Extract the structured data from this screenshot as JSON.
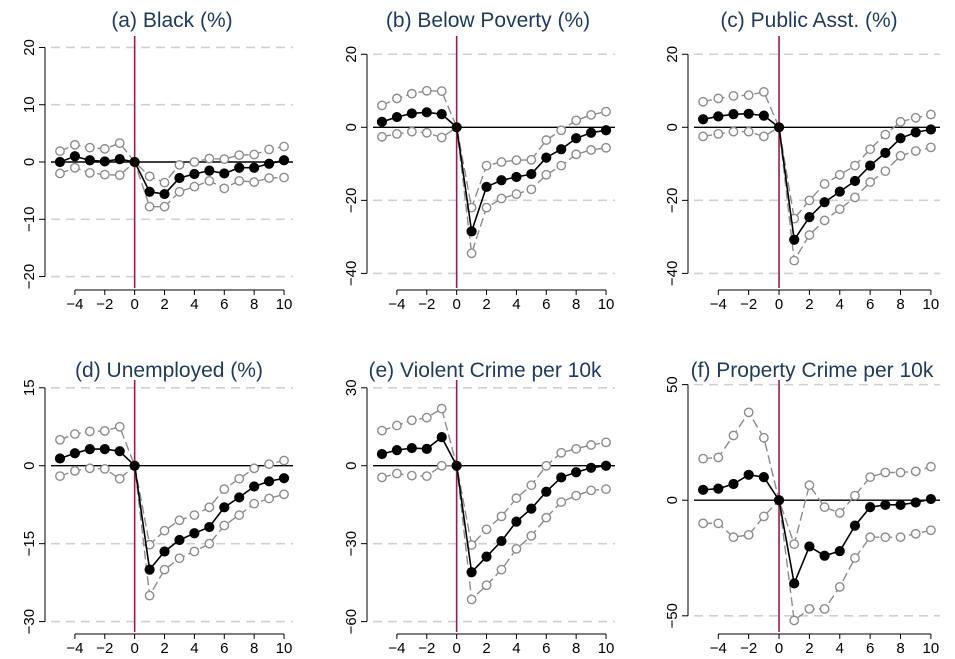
{
  "figure": {
    "x_ticks": [
      "−4",
      "−2",
      "0",
      "2",
      "4",
      "6",
      "8",
      "10"
    ],
    "colors": {
      "point": "#000000",
      "ci": "#8c8c8c",
      "event_line": "#a01850",
      "grid": "#d0d0d0"
    }
  },
  "chart_data": [
    {
      "type": "line",
      "title": "(a) Black (%)",
      "x": [
        -5,
        -4,
        -3,
        -2,
        -1,
        0,
        1,
        2,
        3,
        4,
        5,
        6,
        7,
        8,
        9,
        10
      ],
      "ylim": [
        -22,
        22
      ],
      "yticks": [
        -20,
        -10,
        0,
        10,
        20
      ],
      "ytick_labels": [
        "−20",
        "−10",
        "0",
        "10",
        "20"
      ],
      "series": [
        {
          "values": [
            0.0,
            1.0,
            0.3,
            0.1,
            0.5,
            0.0,
            -5.2,
            -5.6,
            -2.8,
            -2.1,
            -1.5,
            -2.0,
            -1.0,
            -1.0,
            -0.3,
            0.3
          ]
        },
        {
          "values": [
            1.9,
            3.0,
            2.5,
            2.3,
            3.3,
            0.0,
            -2.5,
            -3.6,
            -0.5,
            0.0,
            0.6,
            0.5,
            1.2,
            1.3,
            2.2,
            2.7
          ]
        },
        {
          "values": [
            -2.0,
            -1.0,
            -1.9,
            -2.2,
            -2.3,
            0.0,
            -7.8,
            -7.8,
            -5.2,
            -4.3,
            -3.3,
            -4.6,
            -3.3,
            -3.5,
            -2.8,
            -2.7
          ]
        }
      ]
    },
    {
      "type": "line",
      "title": "(b) Below Poverty (%)",
      "x": [
        -5,
        -4,
        -3,
        -2,
        -1,
        0,
        1,
        2,
        3,
        4,
        5,
        6,
        7,
        8,
        9,
        10
      ],
      "ylim": [
        -44,
        25
      ],
      "yticks": [
        -40,
        -20,
        0,
        20
      ],
      "ytick_labels": [
        "−40",
        "−20",
        "0",
        "20"
      ],
      "series": [
        {
          "values": [
            1.5,
            2.8,
            3.8,
            4.1,
            3.6,
            0.0,
            -28.5,
            -16.3,
            -14.5,
            -13.6,
            -12.8,
            -8.3,
            -6.0,
            -3.0,
            -1.5,
            -0.8
          ]
        },
        {
          "values": [
            6.0,
            7.9,
            9.2,
            10.0,
            9.9,
            0.0,
            -22.0,
            -10.5,
            -9.5,
            -9.0,
            -8.9,
            -3.5,
            -0.8,
            1.9,
            3.4,
            4.3
          ]
        },
        {
          "values": [
            -2.6,
            -1.8,
            -1.2,
            -1.5,
            -2.8,
            0.0,
            -34.5,
            -22.0,
            -19.5,
            -18.3,
            -17.0,
            -13.0,
            -10.5,
            -7.4,
            -6.2,
            -5.6
          ]
        }
      ]
    },
    {
      "type": "line",
      "title": "(c) Public Asst. (%)",
      "x": [
        -5,
        -4,
        -3,
        -2,
        -1,
        0,
        1,
        2,
        3,
        4,
        5,
        6,
        7,
        8,
        9,
        10
      ],
      "ylim": [
        -44,
        25
      ],
      "yticks": [
        -40,
        -20,
        0,
        20
      ],
      "ytick_labels": [
        "−40",
        "−20",
        "0",
        "20"
      ],
      "series": [
        {
          "values": [
            2.2,
            3.0,
            3.6,
            3.7,
            3.2,
            0.0,
            -30.8,
            -24.6,
            -20.5,
            -17.6,
            -14.7,
            -10.5,
            -7.0,
            -3.0,
            -1.4,
            -0.6
          ]
        },
        {
          "values": [
            7.0,
            7.9,
            8.6,
            8.8,
            9.7,
            0.0,
            -25.0,
            -20.0,
            -15.5,
            -13.0,
            -10.5,
            -6.0,
            -2.0,
            1.5,
            2.6,
            3.5
          ]
        },
        {
          "values": [
            -2.5,
            -1.8,
            -1.2,
            -1.2,
            -2.5,
            0.0,
            -36.5,
            -29.5,
            -25.5,
            -22.4,
            -19.2,
            -15.0,
            -12.0,
            -7.8,
            -6.5,
            -5.5
          ]
        }
      ]
    },
    {
      "type": "line",
      "title": "(d) Unemployed (%)",
      "x": [
        -5,
        -4,
        -3,
        -2,
        -1,
        0,
        1,
        2,
        3,
        4,
        5,
        6,
        7,
        8,
        9,
        10
      ],
      "ylim": [
        -32,
        16.5
      ],
      "yticks": [
        -30,
        -15,
        0,
        15
      ],
      "ytick_labels": [
        "−30",
        "−15",
        "0",
        "15"
      ],
      "series": [
        {
          "values": [
            1.4,
            2.4,
            3.2,
            3.2,
            2.8,
            0.0,
            -20.0,
            -16.5,
            -14.3,
            -13.0,
            -11.8,
            -8.0,
            -6.1,
            -4.0,
            -3.0,
            -2.4
          ]
        },
        {
          "values": [
            5.0,
            6.1,
            6.6,
            6.7,
            7.5,
            0.0,
            -15.2,
            -12.5,
            -10.5,
            -9.5,
            -8.0,
            -4.5,
            -2.5,
            -0.5,
            0.3,
            1.0
          ]
        },
        {
          "values": [
            -2.0,
            -1.0,
            -0.5,
            -0.6,
            -2.5,
            0.0,
            -25.0,
            -20.0,
            -17.8,
            -16.5,
            -15.0,
            -11.5,
            -9.5,
            -7.3,
            -6.3,
            -5.5
          ]
        }
      ]
    },
    {
      "type": "line",
      "title": "(e) Violent Crime per 10k",
      "x": [
        -5,
        -4,
        -3,
        -2,
        -1,
        0,
        1,
        2,
        3,
        4,
        5,
        6,
        7,
        8,
        9,
        10
      ],
      "ylim": [
        -64,
        33
      ],
      "yticks": [
        -60,
        -30,
        0,
        30
      ],
      "ytick_labels": [
        "−60",
        "−30",
        "0",
        "30"
      ],
      "series": [
        {
          "values": [
            4.5,
            6.0,
            6.8,
            6.5,
            11.0,
            0.0,
            -41.0,
            -35.0,
            -29.0,
            -21.5,
            -16.5,
            -10.0,
            -4.5,
            -2.5,
            -0.8,
            0.0
          ]
        },
        {
          "values": [
            13.5,
            15.5,
            17.5,
            18.5,
            22.0,
            0.0,
            -30.5,
            -24.5,
            -19.5,
            -12.5,
            -7.5,
            0.0,
            5.0,
            6.5,
            8.0,
            9.0
          ]
        },
        {
          "values": [
            -4.5,
            -3.0,
            -3.8,
            -4.0,
            0.0,
            0.0,
            -51.5,
            -46.0,
            -40.0,
            -32.0,
            -27.0,
            -20.0,
            -14.0,
            -11.5,
            -9.5,
            -9.0
          ]
        }
      ]
    },
    {
      "type": "line",
      "title": "(f) Property Crime per 10k",
      "x": [
        -5,
        -4,
        -3,
        -2,
        -1,
        0,
        1,
        2,
        3,
        4,
        5,
        6,
        7,
        8,
        9,
        10
      ],
      "ylim": [
        -57,
        52
      ],
      "yticks": [
        -50,
        0,
        50
      ],
      "ytick_labels": [
        "−50",
        "0",
        "50"
      ],
      "series": [
        {
          "values": [
            4.5,
            5.0,
            7.0,
            11.0,
            10.0,
            0.0,
            -36.0,
            -20.0,
            -24.0,
            -22.0,
            -11.0,
            -3.0,
            -2.0,
            -2.0,
            -1.0,
            0.5
          ]
        },
        {
          "values": [
            18.0,
            18.5,
            28.0,
            38.0,
            27.0,
            0.0,
            -19.0,
            6.5,
            -3.0,
            -5.5,
            2.0,
            10.0,
            12.0,
            12.0,
            12.5,
            14.5
          ]
        },
        {
          "values": [
            -10.0,
            -10.0,
            -16.0,
            -15.0,
            -7.0,
            0.0,
            -52.0,
            -47.0,
            -47.0,
            -37.5,
            -25.0,
            -16.0,
            -16.0,
            -16.0,
            -14.5,
            -13.0
          ]
        }
      ]
    }
  ]
}
